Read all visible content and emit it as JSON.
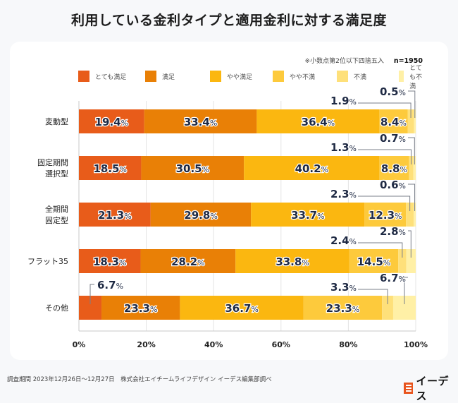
{
  "title": "利用している金利タイプと適用金利に対する満足度",
  "note": "※小数点第2位以下四捨五入",
  "sample_size": "n=1950",
  "footer": "調査期間 2023年12月26日〜12月27日　株式会社エイチームライフデザイン イーデス編集部調べ",
  "logo": {
    "icon": "e-logo-icon",
    "text": "イーデス"
  },
  "chart_data": {
    "type": "bar",
    "orientation": "horizontal",
    "stacked": true,
    "title": "利用している金利タイプと適用金利に対する満足度",
    "xlabel": "",
    "ylabel": "",
    "xlim": [
      0,
      100
    ],
    "x_ticks": [
      "0%",
      "20%",
      "40%",
      "60%",
      "80%",
      "100%"
    ],
    "grid": true,
    "legend_position": "top",
    "categories": [
      "変動型",
      "固定期間\n選択型",
      "全期間\n固定型",
      "フラット35",
      "その他"
    ],
    "series": [
      {
        "name": "とても満足",
        "color": "#e85c1a",
        "values": [
          19.4,
          18.5,
          21.3,
          18.3,
          6.7
        ]
      },
      {
        "name": "満足",
        "color": "#e98006",
        "values": [
          33.4,
          30.5,
          29.8,
          28.2,
          23.3
        ]
      },
      {
        "name": "やや満足",
        "color": "#fbb710",
        "values": [
          36.4,
          40.2,
          33.7,
          33.8,
          36.7
        ]
      },
      {
        "name": "やや不満",
        "color": "#fdca3c",
        "values": [
          8.4,
          8.8,
          12.3,
          14.5,
          23.3
        ]
      },
      {
        "name": "不満",
        "color": "#fee07a",
        "values": [
          1.9,
          1.3,
          2.3,
          2.4,
          3.3
        ]
      },
      {
        "name": "とても不満",
        "color": "#fff0a6",
        "values": [
          0.5,
          0.7,
          0.6,
          2.8,
          6.7
        ]
      }
    ]
  }
}
